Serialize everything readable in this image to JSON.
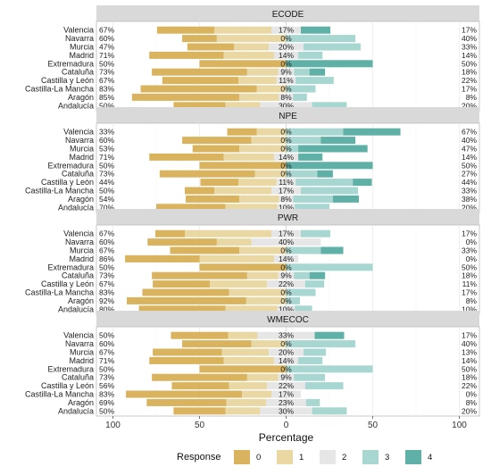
{
  "chart_data": {
    "type": "bar",
    "subtype": "diverging-stacked-likert",
    "xlabel": "Percentage",
    "xlim": [
      -100,
      100
    ],
    "x_ticks": [
      {
        "value": -100,
        "label": "100"
      },
      {
        "value": -50,
        "label": "50"
      },
      {
        "value": 0,
        "label": "0"
      },
      {
        "value": 50,
        "label": "50"
      },
      {
        "value": 100,
        "label": "100"
      }
    ],
    "legend": {
      "title": "Response",
      "placement": "bottom",
      "items": [
        {
          "label": "0",
          "color": "#d9b35e"
        },
        {
          "label": "1",
          "color": "#e9d7a4"
        },
        {
          "label": "2",
          "color": "#e6e6e6"
        },
        {
          "label": "3",
          "color": "#a8d6d0"
        },
        {
          "label": "4",
          "color": "#5fb0a6"
        }
      ]
    },
    "categories": [
      "Valencia",
      "Navarra",
      "Murcia",
      "Madrid",
      "Extremadura",
      "Cataluña",
      "Castilla y León",
      "Castilla-La Mancha",
      "Aragón",
      "Andalucía"
    ],
    "panels": [
      {
        "title": "ECODE",
        "rows": [
          {
            "category": "Valencia",
            "left": "67%",
            "mid": "17%",
            "right": "17%",
            "values": [
              33,
              33,
              17,
              0,
              17
            ]
          },
          {
            "category": "Navarra",
            "left": "60%",
            "mid": "0%",
            "right": "40%",
            "values": [
              20,
              40,
              0,
              40,
              0
            ]
          },
          {
            "category": "Murcia",
            "left": "47%",
            "mid": "20%",
            "right": "33%",
            "values": [
              27,
              20,
              20,
              33,
              0
            ]
          },
          {
            "category": "Madrid",
            "left": "71%",
            "mid": "14%",
            "right": "14%",
            "values": [
              43,
              29,
              14,
              14,
              0
            ]
          },
          {
            "category": "Extremadura",
            "left": "50%",
            "mid": "0%",
            "right": "50%",
            "values": [
              50,
              0,
              0,
              0,
              50
            ]
          },
          {
            "category": "Cataluña",
            "left": "73%",
            "mid": "9%",
            "right": "18%",
            "values": [
              55,
              18,
              9,
              9,
              9
            ]
          },
          {
            "category": "Castilla y León",
            "left": "67%",
            "mid": "11%",
            "right": "22%",
            "values": [
              44,
              22,
              11,
              22,
              0
            ]
          },
          {
            "category": "Castilla-La Mancha",
            "left": "83%",
            "mid": "0%",
            "right": "17%",
            "values": [
              67,
              17,
              0,
              17,
              0
            ]
          },
          {
            "category": "Aragón",
            "left": "85%",
            "mid": "8%",
            "right": "8%",
            "values": [
              62,
              23,
              8,
              8,
              0
            ]
          },
          {
            "category": "Andalucía",
            "left": "50%",
            "mid": "30%",
            "right": "20%",
            "values": [
              30,
              20,
              30,
              20,
              0
            ]
          }
        ]
      },
      {
        "title": "NPE",
        "rows": [
          {
            "category": "Valencia",
            "left": "33%",
            "mid": "0%",
            "right": "67%",
            "values": [
              17,
              17,
              0,
              33,
              33
            ]
          },
          {
            "category": "Navarra",
            "left": "60%",
            "mid": "0%",
            "right": "40%",
            "values": [
              40,
              20,
              0,
              20,
              20
            ]
          },
          {
            "category": "Murcia",
            "left": "53%",
            "mid": "0%",
            "right": "47%",
            "values": [
              27,
              27,
              0,
              7,
              40
            ]
          },
          {
            "category": "Madrid",
            "left": "71%",
            "mid": "14%",
            "right": "14%",
            "values": [
              43,
              29,
              14,
              0,
              14
            ]
          },
          {
            "category": "Extremadura",
            "left": "50%",
            "mid": "0%",
            "right": "50%",
            "values": [
              50,
              0,
              0,
              0,
              50
            ]
          },
          {
            "category": "Cataluña",
            "left": "73%",
            "mid": "0%",
            "right": "27%",
            "values": [
              55,
              18,
              0,
              18,
              9
            ]
          },
          {
            "category": "Castilla y León",
            "left": "44%",
            "mid": "11%",
            "right": "44%",
            "values": [
              22,
              22,
              11,
              33,
              11
            ]
          },
          {
            "category": "Castilla-La Mancha",
            "left": "50%",
            "mid": "17%",
            "right": "33%",
            "values": [
              17,
              33,
              17,
              33,
              0
            ]
          },
          {
            "category": "Aragón",
            "left": "54%",
            "mid": "8%",
            "right": "38%",
            "values": [
              31,
              23,
              8,
              23,
              15
            ]
          },
          {
            "category": "Andalucía",
            "left": "70%",
            "mid": "10%",
            "right": "20%",
            "values": [
              40,
              30,
              10,
              20,
              0
            ]
          }
        ]
      },
      {
        "title": "PWR",
        "rows": [
          {
            "category": "Valencia",
            "left": "67%",
            "mid": "17%",
            "right": "17%",
            "values": [
              17,
              50,
              17,
              17,
              0
            ]
          },
          {
            "category": "Navarra",
            "left": "60%",
            "mid": "40%",
            "right": "0%",
            "values": [
              40,
              20,
              40,
              0,
              0
            ]
          },
          {
            "category": "Murcia",
            "left": "67%",
            "mid": "0%",
            "right": "33%",
            "values": [
              40,
              27,
              0,
              20,
              13
            ]
          },
          {
            "category": "Madrid",
            "left": "86%",
            "mid": "14%",
            "right": "0%",
            "values": [
              43,
              43,
              14,
              0,
              0
            ]
          },
          {
            "category": "Extremadura",
            "left": "50%",
            "mid": "0%",
            "right": "50%",
            "values": [
              50,
              0,
              0,
              50,
              0
            ]
          },
          {
            "category": "Cataluña",
            "left": "73%",
            "mid": "9%",
            "right": "18%",
            "values": [
              55,
              18,
              9,
              9,
              9
            ]
          },
          {
            "category": "Castilla y León",
            "left": "67%",
            "mid": "22%",
            "right": "11%",
            "values": [
              33,
              33,
              22,
              11,
              0
            ]
          },
          {
            "category": "Castilla-La Mancha",
            "left": "83%",
            "mid": "0%",
            "right": "17%",
            "values": [
              50,
              33,
              0,
              17,
              0
            ]
          },
          {
            "category": "Aragón",
            "left": "92%",
            "mid": "0%",
            "right": "8%",
            "values": [
              69,
              23,
              0,
              8,
              0
            ]
          },
          {
            "category": "Andalucía",
            "left": "80%",
            "mid": "10%",
            "right": "10%",
            "values": [
              50,
              30,
              10,
              10,
              0
            ]
          }
        ]
      },
      {
        "title": "WMECOC",
        "rows": [
          {
            "category": "Valencia",
            "left": "50%",
            "mid": "33%",
            "right": "17%",
            "values": [
              33,
              17,
              33,
              0,
              17
            ]
          },
          {
            "category": "Navarra",
            "left": "60%",
            "mid": "0%",
            "right": "40%",
            "values": [
              40,
              20,
              0,
              40,
              0
            ]
          },
          {
            "category": "Murcia",
            "left": "67%",
            "mid": "20%",
            "right": "13%",
            "values": [
              40,
              27,
              20,
              13,
              0
            ]
          },
          {
            "category": "Madrid",
            "left": "71%",
            "mid": "14%",
            "right": "14%",
            "values": [
              43,
              29,
              14,
              14,
              0
            ]
          },
          {
            "category": "Extremadura",
            "left": "50%",
            "mid": "0%",
            "right": "50%",
            "values": [
              50,
              0,
              0,
              50,
              0
            ]
          },
          {
            "category": "Cataluña",
            "left": "73%",
            "mid": "9%",
            "right": "18%",
            "values": [
              55,
              18,
              9,
              18,
              0
            ]
          },
          {
            "category": "Castilla y León",
            "left": "56%",
            "mid": "22%",
            "right": "22%",
            "values": [
              33,
              22,
              22,
              22,
              0
            ]
          },
          {
            "category": "Castilla-La Mancha",
            "left": "83%",
            "mid": "17%",
            "right": "0%",
            "values": [
              67,
              17,
              17,
              0,
              0
            ]
          },
          {
            "category": "Aragón",
            "left": "69%",
            "mid": "23%",
            "right": "8%",
            "values": [
              46,
              23,
              23,
              8,
              0
            ]
          },
          {
            "category": "Andalucía",
            "left": "50%",
            "mid": "30%",
            "right": "20%",
            "values": [
              30,
              20,
              30,
              20,
              0
            ]
          }
        ]
      }
    ]
  }
}
